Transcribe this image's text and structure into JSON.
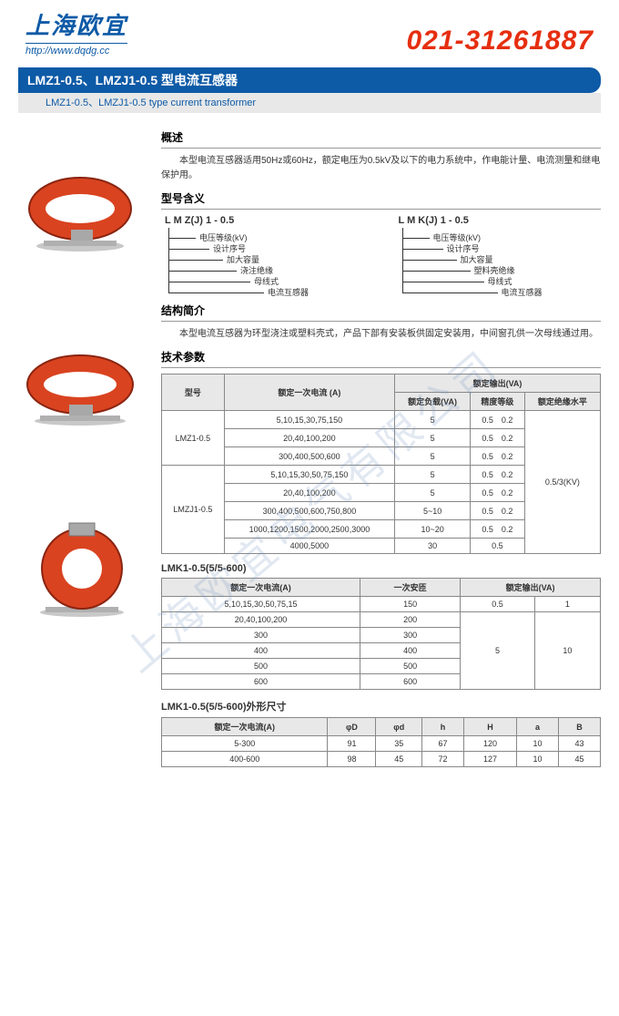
{
  "header": {
    "company_cn": "上海欧宜",
    "url": "http://www.dqdg.cc",
    "phone": "021-31261887"
  },
  "titlebar": {
    "cn": "LMZ1-0.5、LMZJ1-0.5 型电流互感器",
    "en": "LMZ1-0.5、LMZJ1-0.5 type current transformer"
  },
  "sections": {
    "overview_title": "概述",
    "overview_text": "本型电流互感器适用50Hz或60Hz，额定电压为0.5kV及以下的电力系统中，作电能计量、电流测量和继电保护用。",
    "model_title": "型号含义",
    "structure_title": "结构简介",
    "structure_text": "本型电流互感器为环型浇注或塑料壳式，产品下部有安装板供固定安装用，中间窗孔供一次母线通过用。",
    "tech_title": "技术参数"
  },
  "model1": {
    "letters": "L  M  Z(J)  1  -  0.5",
    "lines": [
      "电压等级(kV)",
      "设计序号",
      "加大容量",
      "浇注绝缘",
      "母线式",
      "电流互感器"
    ]
  },
  "model2": {
    "letters": "L  M  K(J)  1  -  0.5",
    "lines": [
      "电压等级(kV)",
      "设计序号",
      "加大容量",
      "塑料壳绝缘",
      "母线式",
      "电流互感器"
    ]
  },
  "table1": {
    "headers": {
      "model": "型号",
      "primary": "额定一次电流\n(A)",
      "output": "额定输出(VA)",
      "load": "额定负载(VA)",
      "accuracy": "精度等级",
      "insul": "额定绝缘水平"
    },
    "models": {
      "a": "LMZ1-0.5",
      "b": "LMZJ1-0.5"
    },
    "rows_a": [
      {
        "p": "5,10,15,30,75,150",
        "l": "5",
        "a1": "0.5",
        "a2": "0.2"
      },
      {
        "p": "20,40,100,200",
        "l": "5",
        "a1": "0.5",
        "a2": "0.2"
      },
      {
        "p": "300,400,500,600",
        "l": "5",
        "a1": "0.5",
        "a2": "0.2"
      }
    ],
    "rows_b": [
      {
        "p": "5,10,15,30,50,75,150",
        "l": "5",
        "a1": "0.5",
        "a2": "0.2"
      },
      {
        "p": "20,40,100,200",
        "l": "5",
        "a1": "0.5",
        "a2": "0.2"
      },
      {
        "p": "300,400,500,600,750,800",
        "l": "5~10",
        "a1": "0.5",
        "a2": "0.2"
      },
      {
        "p": "1000,1200,1500,2000,2500,3000",
        "l": "10~20",
        "a1": "0.5",
        "a2": "0.2"
      },
      {
        "p": "4000,5000",
        "l": "30",
        "a1": "0.5",
        "a2": ""
      }
    ],
    "insul": "0.5/3(KV)"
  },
  "table2": {
    "label": "LMK1-0.5(5/5-600)",
    "headers": {
      "p": "额定一次电流(A)",
      "at": "一次安匝",
      "out": "额定输出(VA)"
    },
    "rows": [
      {
        "p": "5,10,15,30,50,75,15",
        "at": "150",
        "o1": "0.5",
        "o2": "1"
      },
      {
        "p": "20,40,100,200",
        "at": "200"
      },
      {
        "p": "300",
        "at": "300"
      },
      {
        "p": "400",
        "at": "400"
      },
      {
        "p": "500",
        "at": "500"
      },
      {
        "p": "600",
        "at": "600"
      }
    ],
    "merge_o1": "5",
    "merge_o2": "10"
  },
  "table3": {
    "label": "LMK1-0.5(5/5-600)外形尺寸",
    "headers": {
      "p": "额定一次电流(A)",
      "D": "φD",
      "d": "φd",
      "h": "h",
      "H": "H",
      "a": "a",
      "B": "B"
    },
    "rows": [
      {
        "p": "5-300",
        "D": "91",
        "d": "35",
        "h": "67",
        "H": "120",
        "a": "10",
        "B": "43"
      },
      {
        "p": "400-600",
        "D": "98",
        "d": "45",
        "h": "72",
        "H": "127",
        "a": "10",
        "B": "45"
      }
    ]
  },
  "watermark": "上海欧宜电气有限公司",
  "colors": {
    "brand_blue": "#0d5aa6",
    "brand_red": "#e62e10",
    "product_body": "#d94320",
    "product_dark": "#8a2410",
    "base_metal": "#c8c8c8"
  }
}
